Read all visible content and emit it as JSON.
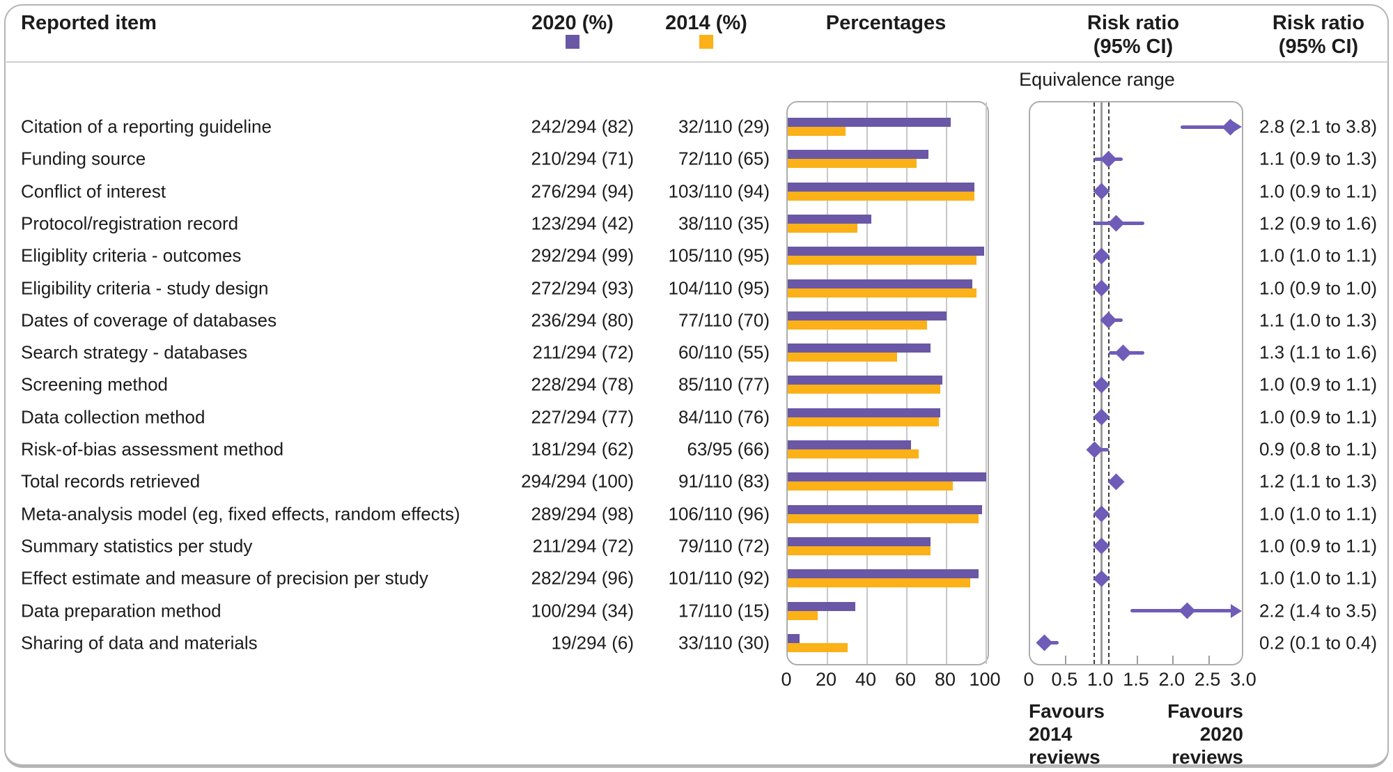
{
  "header": {
    "reported_item": "Reported item",
    "col_2020": "2020 (%)",
    "col_2014": "2014 (%)",
    "percentages": "Percentages",
    "risk_ratio": {
      "line1": "Risk ratio",
      "line2": "(95% CI)"
    }
  },
  "equivalence_label": "Equivalence range",
  "favours_left": [
    "Favours",
    "2014",
    "reviews"
  ],
  "favours_right": [
    "Favours",
    "2020",
    "reviews"
  ],
  "colors": {
    "purple_2020": "#6A57A6",
    "orange_2014": "#FBB117",
    "forest_purple": "#6E5CB8",
    "gridline": "#C8C8C8",
    "panel_border": "#ADADAD",
    "reference_line": "#9C9C9C",
    "equivalence_dash": "#3D3D3D"
  },
  "chart_data": {
    "type": "bar",
    "title": "",
    "legend": [
      {
        "name": "2020 (%)",
        "color": "#6A57A6"
      },
      {
        "name": "2014 (%)",
        "color": "#FBB117"
      }
    ],
    "percent_axis": {
      "label": "Percentages",
      "ticks": [
        0,
        20,
        40,
        60,
        80,
        100
      ],
      "range": [
        0,
        100
      ],
      "grid": true
    },
    "rr_axis": {
      "label": "Risk ratio (95% CI)",
      "tick_labels": [
        "0",
        "0.5",
        "1.0",
        "1.5",
        "2.0",
        "2.5",
        "3.0"
      ],
      "range": [
        0,
        3.0
      ],
      "reference_line": 1.0,
      "equivalence_range": [
        0.9,
        1.1
      ]
    },
    "rows": [
      {
        "label": "Citation of a reporting guideline",
        "v2020": "242/294 (82)",
        "v2014": "32/110 (29)",
        "pct2020": 82,
        "pct2014": 29,
        "rr": 2.8,
        "lo": 2.1,
        "hi": 3.8,
        "rr_text": "2.8 (2.1 to 3.8)"
      },
      {
        "label": "Funding source",
        "v2020": "210/294 (71)",
        "v2014": "72/110 (65)",
        "pct2020": 71,
        "pct2014": 65,
        "rr": 1.1,
        "lo": 0.9,
        "hi": 1.3,
        "rr_text": "1.1 (0.9 to 1.3)"
      },
      {
        "label": "Conflict of interest",
        "v2020": "276/294 (94)",
        "v2014": "103/110 (94)",
        "pct2020": 94,
        "pct2014": 94,
        "rr": 1.0,
        "lo": 0.9,
        "hi": 1.1,
        "rr_text": "1.0 (0.9 to 1.1)"
      },
      {
        "label": "Protocol/registration record",
        "v2020": "123/294 (42)",
        "v2014": "38/110 (35)",
        "pct2020": 42,
        "pct2014": 35,
        "rr": 1.2,
        "lo": 0.9,
        "hi": 1.6,
        "rr_text": "1.2 (0.9 to 1.6)"
      },
      {
        "label": "Eligiblity criteria - outcomes",
        "v2020": "292/294 (99)",
        "v2014": "105/110 (95)",
        "pct2020": 99,
        "pct2014": 95,
        "rr": 1.0,
        "lo": 1.0,
        "hi": 1.1,
        "rr_text": "1.0 (1.0 to 1.1)"
      },
      {
        "label": "Eligibility criteria - study design",
        "v2020": "272/294 (93)",
        "v2014": "104/110 (95)",
        "pct2020": 93,
        "pct2014": 95,
        "rr": 1.0,
        "lo": 0.9,
        "hi": 1.0,
        "rr_text": "1.0 (0.9 to 1.0)"
      },
      {
        "label": "Dates of coverage of databases",
        "v2020": "236/294 (80)",
        "v2014": "77/110 (70)",
        "pct2020": 80,
        "pct2014": 70,
        "rr": 1.1,
        "lo": 1.0,
        "hi": 1.3,
        "rr_text": "1.1 (1.0 to 1.3)"
      },
      {
        "label": "Search strategy - databases",
        "v2020": "211/294 (72)",
        "v2014": "60/110 (55)",
        "pct2020": 72,
        "pct2014": 55,
        "rr": 1.3,
        "lo": 1.1,
        "hi": 1.6,
        "rr_text": "1.3 (1.1 to 1.6)"
      },
      {
        "label": "Screening method",
        "v2020": "228/294 (78)",
        "v2014": "85/110 (77)",
        "pct2020": 78,
        "pct2014": 77,
        "rr": 1.0,
        "lo": 0.9,
        "hi": 1.1,
        "rr_text": "1.0 (0.9 to 1.1)"
      },
      {
        "label": "Data collection method",
        "v2020": "227/294 (77)",
        "v2014": "84/110 (76)",
        "pct2020": 77,
        "pct2014": 76,
        "rr": 1.0,
        "lo": 0.9,
        "hi": 1.1,
        "rr_text": "1.0 (0.9 to 1.1)"
      },
      {
        "label": "Risk-of-bias assessment method",
        "v2020": "181/294 (62)",
        "v2014": "63/95 (66)",
        "pct2020": 62,
        "pct2014": 66,
        "rr": 0.9,
        "lo": 0.8,
        "hi": 1.1,
        "rr_text": "0.9 (0.8 to 1.1)"
      },
      {
        "label": "Total records retrieved",
        "v2020": "294/294 (100)",
        "v2014": "91/110 (83)",
        "pct2020": 100,
        "pct2014": 83,
        "rr": 1.2,
        "lo": 1.1,
        "hi": 1.3,
        "rr_text": "1.2 (1.1 to 1.3)"
      },
      {
        "label": "Meta-analysis model (eg, fixed effects, random effects)",
        "v2020": "289/294 (98)",
        "v2014": "106/110 (96)",
        "pct2020": 98,
        "pct2014": 96,
        "rr": 1.0,
        "lo": 1.0,
        "hi": 1.1,
        "rr_text": "1.0 (1.0 to 1.1)"
      },
      {
        "label": "Summary statistics per study",
        "v2020": "211/294 (72)",
        "v2014": "79/110 (72)",
        "pct2020": 72,
        "pct2014": 72,
        "rr": 1.0,
        "lo": 0.9,
        "hi": 1.1,
        "rr_text": "1.0 (0.9 to 1.1)"
      },
      {
        "label": "Effect estimate and measure of precision per study",
        "v2020": "282/294 (96)",
        "v2014": "101/110 (92)",
        "pct2020": 96,
        "pct2014": 92,
        "rr": 1.0,
        "lo": 1.0,
        "hi": 1.1,
        "rr_text": "1.0 (1.0 to 1.1)"
      },
      {
        "label": "Data preparation method",
        "v2020": "100/294 (34)",
        "v2014": "17/110 (15)",
        "pct2020": 34,
        "pct2014": 15,
        "rr": 2.2,
        "lo": 1.4,
        "hi": 3.5,
        "rr_text": "2.2 (1.4 to 3.5)"
      },
      {
        "label": "Sharing of data and materials",
        "v2020": "19/294 (6)",
        "v2014": "33/110 (30)",
        "pct2020": 6,
        "pct2014": 30,
        "rr": 0.2,
        "lo": 0.1,
        "hi": 0.4,
        "rr_text": "0.2 (0.1 to 0.4)"
      }
    ]
  }
}
